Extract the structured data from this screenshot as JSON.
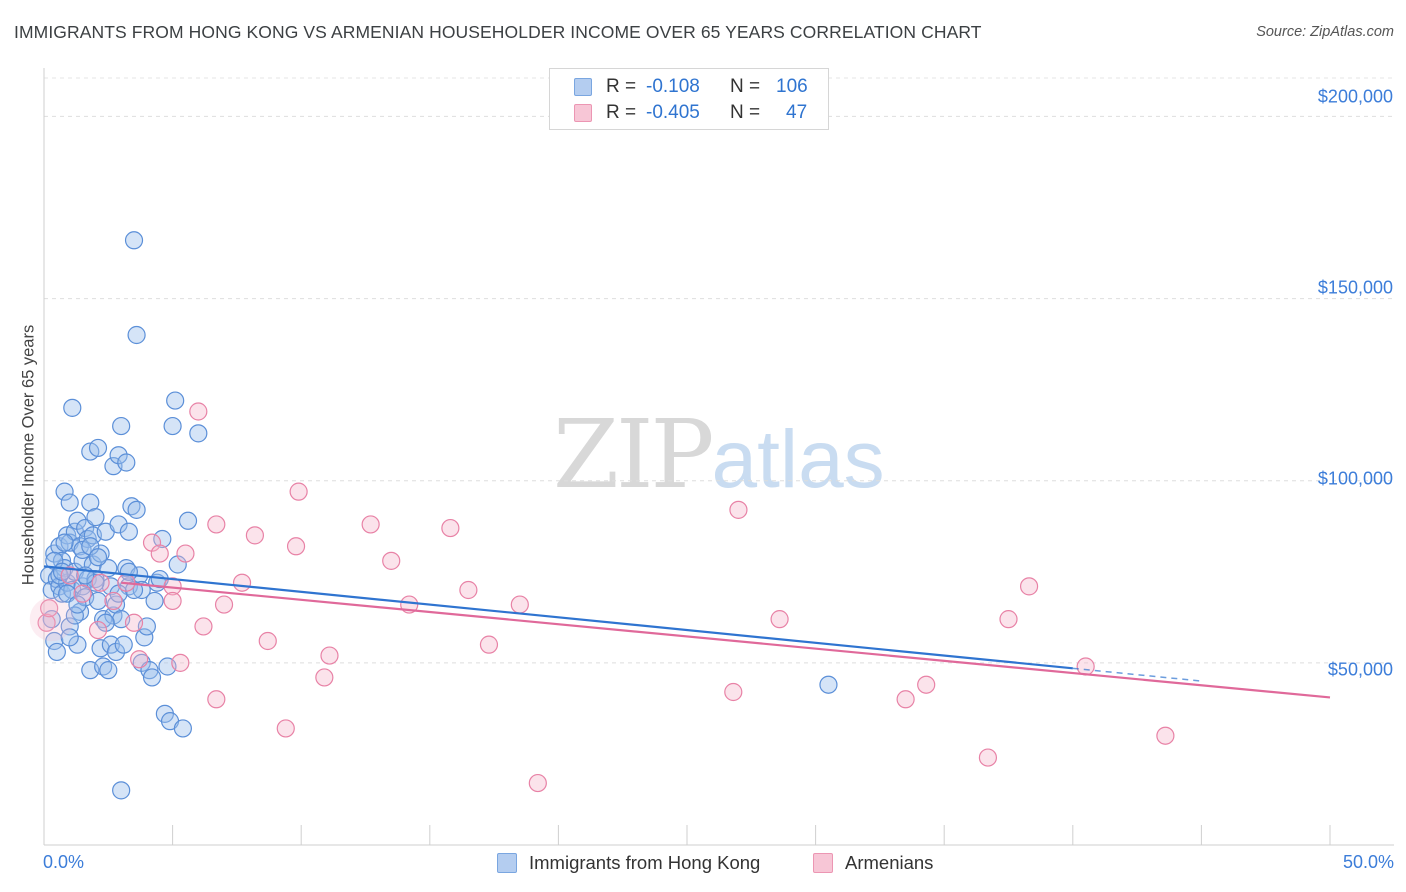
{
  "title": "IMMIGRANTS FROM HONG KONG VS ARMENIAN HOUSEHOLDER INCOME OVER 65 YEARS CORRELATION CHART",
  "source": "Source: ZipAtlas.com",
  "watermark": {
    "zip": "ZIP",
    "atlas": "atlas"
  },
  "legend": {
    "rows": [
      {
        "r_label": "R =",
        "r_value": "-0.108",
        "n_label": "N =",
        "n_value": "106"
      },
      {
        "r_label": "R =",
        "r_value": "-0.405",
        "n_label": "N =",
        "n_value": "47"
      }
    ]
  },
  "colors": {
    "blue": "#5b8fd8",
    "pink": "#e882a6",
    "blue_line": "#2f74d0",
    "pink_line": "#e0699a",
    "axis_text": "#3c7dd9"
  },
  "chart_data": {
    "type": "scatter",
    "title": "IMMIGRANTS FROM HONG KONG VS ARMENIAN HOUSEHOLDER INCOME OVER 65 YEARS CORRELATION CHART",
    "xlabel": "",
    "ylabel": "Householder Income Over 65 years",
    "xlim": [
      0,
      50
    ],
    "ylim": [
      0,
      210000
    ],
    "x_tick_labels": [
      "0.0%",
      "50.0%"
    ],
    "y_ticks": [
      50000,
      100000,
      150000,
      200000
    ],
    "y_tick_labels": [
      "$50,000",
      "$100,000",
      "$150,000",
      "$200,000"
    ],
    "grid": true,
    "series": [
      {
        "name": "Immigrants from Hong Kong",
        "color": "blue",
        "trend": {
          "x": [
            0,
            40
          ],
          "y": [
            76500,
            48500
          ],
          "dashed_extension_to_x": 45
        },
        "points": [
          [
            0.2,
            74000
          ],
          [
            0.3,
            70000
          ],
          [
            0.3,
            62000
          ],
          [
            0.4,
            56000
          ],
          [
            0.4,
            80000
          ],
          [
            0.5,
            73000
          ],
          [
            0.5,
            53000
          ],
          [
            0.6,
            82000
          ],
          [
            0.6,
            71000
          ],
          [
            0.7,
            78000
          ],
          [
            0.7,
            69000
          ],
          [
            0.8,
            76000
          ],
          [
            0.8,
            97000
          ],
          [
            0.9,
            85000
          ],
          [
            0.9,
            72000
          ],
          [
            1.0,
            83000
          ],
          [
            1.0,
            94000
          ],
          [
            1.0,
            60000
          ],
          [
            1.1,
            70000
          ],
          [
            1.1,
            120000
          ],
          [
            1.2,
            75000
          ],
          [
            1.2,
            86000
          ],
          [
            1.3,
            89000
          ],
          [
            1.3,
            55000
          ],
          [
            1.4,
            82000
          ],
          [
            1.4,
            64000
          ],
          [
            1.5,
            78000
          ],
          [
            1.5,
            71000
          ],
          [
            1.6,
            87000
          ],
          [
            1.6,
            68000
          ],
          [
            1.7,
            84000
          ],
          [
            1.7,
            73000
          ],
          [
            1.8,
            48000
          ],
          [
            1.8,
            94000
          ],
          [
            1.8,
            108000
          ],
          [
            1.9,
            85000
          ],
          [
            1.9,
            77000
          ],
          [
            2.0,
            90000
          ],
          [
            2.0,
            73000
          ],
          [
            2.1,
            109000
          ],
          [
            2.1,
            67000
          ],
          [
            2.2,
            54000
          ],
          [
            2.2,
            80000
          ],
          [
            2.3,
            49000
          ],
          [
            2.3,
            62000
          ],
          [
            2.4,
            86000
          ],
          [
            2.5,
            76000
          ],
          [
            2.5,
            48000
          ],
          [
            2.6,
            55000
          ],
          [
            2.6,
            71000
          ],
          [
            2.7,
            104000
          ],
          [
            2.7,
            63000
          ],
          [
            2.8,
            66000
          ],
          [
            2.8,
            53000
          ],
          [
            2.9,
            107000
          ],
          [
            2.9,
            88000
          ],
          [
            3.0,
            115000
          ],
          [
            3.0,
            62000
          ],
          [
            3.1,
            55000
          ],
          [
            3.2,
            105000
          ],
          [
            3.2,
            76000
          ],
          [
            3.3,
            86000
          ],
          [
            3.3,
            71000
          ],
          [
            3.4,
            93000
          ],
          [
            3.5,
            166000
          ],
          [
            3.6,
            92000
          ],
          [
            3.6,
            140000
          ],
          [
            3.7,
            74000
          ],
          [
            3.8,
            70000
          ],
          [
            3.8,
            50000
          ],
          [
            3.9,
            57000
          ],
          [
            4.0,
            60000
          ],
          [
            4.1,
            48000
          ],
          [
            4.2,
            46000
          ],
          [
            4.3,
            67000
          ],
          [
            4.4,
            72000
          ],
          [
            4.6,
            84000
          ],
          [
            4.7,
            36000
          ],
          [
            4.8,
            49000
          ],
          [
            4.9,
            34000
          ],
          [
            5.0,
            115000
          ],
          [
            5.1,
            122000
          ],
          [
            5.2,
            77000
          ],
          [
            5.4,
            32000
          ],
          [
            5.6,
            89000
          ],
          [
            6.0,
            113000
          ],
          [
            3.0,
            15000
          ],
          [
            2.0,
            72000
          ],
          [
            1.2,
            63000
          ],
          [
            1.5,
            81000
          ],
          [
            0.9,
            69000
          ],
          [
            0.6,
            74000
          ],
          [
            2.4,
            61000
          ],
          [
            3.3,
            75000
          ],
          [
            1.8,
            82000
          ],
          [
            0.4,
            78000
          ],
          [
            1.3,
            66000
          ],
          [
            2.9,
            69000
          ],
          [
            1.0,
            57000
          ],
          [
            2.1,
            79000
          ],
          [
            0.8,
            83000
          ],
          [
            1.6,
            74000
          ],
          [
            3.5,
            70000
          ],
          [
            4.5,
            73000
          ],
          [
            30.5,
            44000
          ],
          [
            0.7,
            75000
          ]
        ]
      },
      {
        "name": "Armenians",
        "color": "pink",
        "trend": {
          "x": [
            3,
            50
          ],
          "y": [
            72000,
            40500
          ]
        },
        "points": [
          [
            0.1,
            61000
          ],
          [
            0.2,
            65000
          ],
          [
            1.5,
            69000
          ],
          [
            2.1,
            59000
          ],
          [
            2.2,
            72000
          ],
          [
            2.7,
            67000
          ],
          [
            3.2,
            72000
          ],
          [
            3.5,
            61000
          ],
          [
            3.7,
            51000
          ],
          [
            4.2,
            83000
          ],
          [
            4.5,
            80000
          ],
          [
            5.0,
            71000
          ],
          [
            5.0,
            67000
          ],
          [
            5.3,
            50000
          ],
          [
            5.5,
            80000
          ],
          [
            6.0,
            119000
          ],
          [
            6.2,
            60000
          ],
          [
            6.7,
            40000
          ],
          [
            6.7,
            88000
          ],
          [
            7.0,
            66000
          ],
          [
            7.7,
            72000
          ],
          [
            8.2,
            85000
          ],
          [
            8.7,
            56000
          ],
          [
            9.4,
            32000
          ],
          [
            9.8,
            82000
          ],
          [
            9.9,
            97000
          ],
          [
            10.9,
            46000
          ],
          [
            11.1,
            52000
          ],
          [
            12.7,
            88000
          ],
          [
            13.5,
            78000
          ],
          [
            14.2,
            66000
          ],
          [
            15.8,
            87000
          ],
          [
            16.5,
            70000
          ],
          [
            17.3,
            55000
          ],
          [
            18.5,
            66000
          ],
          [
            19.2,
            17000
          ],
          [
            26.8,
            42000
          ],
          [
            27.0,
            92000
          ],
          [
            28.6,
            62000
          ],
          [
            33.5,
            40000
          ],
          [
            34.3,
            44000
          ],
          [
            36.7,
            24000
          ],
          [
            37.5,
            62000
          ],
          [
            38.3,
            71000
          ],
          [
            40.5,
            49000
          ],
          [
            43.6,
            30000
          ],
          [
            1.0,
            74000
          ]
        ]
      }
    ]
  },
  "bottom_legend": [
    {
      "label": "Immigrants from Hong Kong"
    },
    {
      "label": "Armenians"
    }
  ]
}
